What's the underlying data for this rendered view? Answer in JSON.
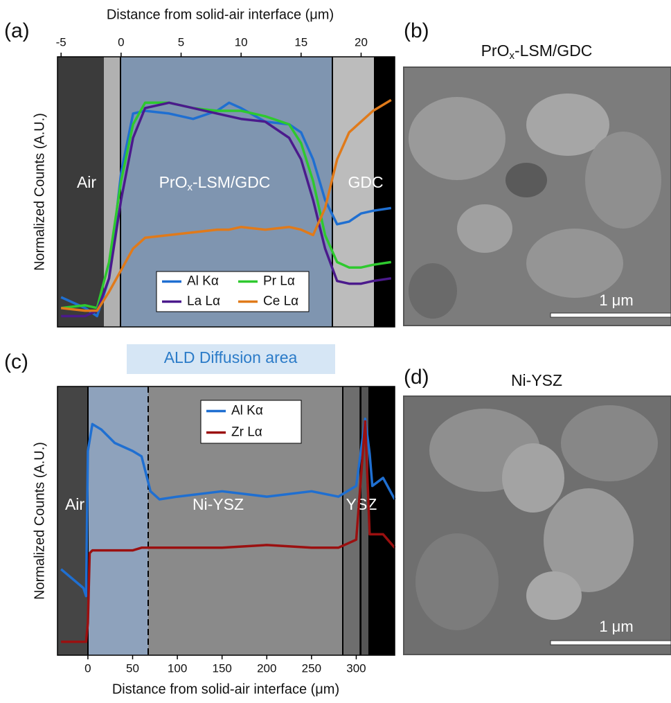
{
  "panel_labels": [
    "(a)",
    "(b)",
    "(c)",
    "(d)"
  ],
  "chart_data": [
    {
      "type": "line",
      "xlabel": "Distance from solid-air interface (μm)",
      "ylabel": "Normalized Counts (A.U.)",
      "xaxis": "top",
      "xlim": [
        -5.3,
        22.8
      ],
      "xticks": [
        -5,
        0,
        5,
        10,
        15,
        20
      ],
      "ylim": [
        0,
        1
      ],
      "regions": [
        "Air",
        {
          "text": "PrO",
          "sub": "x",
          "rest": "-LSM/GDC"
        },
        "GDC"
      ],
      "x": [
        -5,
        -3,
        -2,
        -1,
        0,
        1,
        2,
        4,
        6,
        8,
        9,
        10,
        12,
        14,
        15,
        16,
        17,
        18,
        19,
        20,
        21,
        22.5
      ],
      "series": [
        {
          "name": "Al Kα",
          "color": "#1f6fd1",
          "values": [
            0.11,
            0.07,
            0.04,
            0.18,
            0.57,
            0.79,
            0.8,
            0.79,
            0.77,
            0.8,
            0.83,
            0.81,
            0.76,
            0.75,
            0.72,
            0.62,
            0.47,
            0.38,
            0.39,
            0.42,
            0.43,
            0.44
          ]
        },
        {
          "name": "Pr Lα",
          "color": "#2ec92e",
          "values": [
            0.07,
            0.08,
            0.07,
            0.24,
            0.54,
            0.75,
            0.83,
            0.83,
            0.81,
            0.8,
            0.8,
            0.8,
            0.78,
            0.75,
            0.68,
            0.54,
            0.34,
            0.24,
            0.22,
            0.22,
            0.23,
            0.24
          ]
        },
        {
          "name": "La Lα",
          "color": "#4b1a8c",
          "values": [
            0.04,
            0.04,
            0.06,
            0.18,
            0.47,
            0.7,
            0.81,
            0.83,
            0.81,
            0.79,
            0.78,
            0.77,
            0.76,
            0.7,
            0.62,
            0.47,
            0.29,
            0.17,
            0.16,
            0.16,
            0.17,
            0.18
          ]
        },
        {
          "name": "Ce Lα",
          "color": "#e07a1a",
          "values": [
            0.07,
            0.06,
            0.06,
            0.13,
            0.21,
            0.29,
            0.33,
            0.34,
            0.35,
            0.36,
            0.36,
            0.37,
            0.36,
            0.37,
            0.36,
            0.34,
            0.44,
            0.62,
            0.72,
            0.76,
            0.8,
            0.84
          ]
        }
      ]
    },
    {
      "type": "line",
      "xlabel": "Distance from solid-air interface (μm)",
      "ylabel": "Normalized Counts (A.U.)",
      "xaxis": "bottom",
      "xlim": [
        -34,
        343
      ],
      "xticks": [
        0,
        50,
        100,
        150,
        200,
        250,
        300
      ],
      "ylim": [
        0,
        1
      ],
      "regions": [
        "Air",
        "Ni-YSZ",
        "YSZ"
      ],
      "annotation": "ALD Diffusion area",
      "x": [
        -30,
        -5,
        -2,
        0,
        2,
        5,
        10,
        15,
        30,
        50,
        60,
        70,
        80,
        100,
        150,
        200,
        250,
        280,
        300,
        310,
        315,
        318,
        330,
        343
      ],
      "series": [
        {
          "name": "Al Kα",
          "color": "#1f6fd1",
          "values": [
            0.32,
            0.25,
            0.22,
            0.76,
            0.8,
            0.86,
            0.85,
            0.84,
            0.79,
            0.76,
            0.74,
            0.61,
            0.58,
            0.59,
            0.61,
            0.59,
            0.61,
            0.59,
            0.63,
            0.88,
            0.75,
            0.63,
            0.66,
            0.58
          ]
        },
        {
          "name": "Zr Lα",
          "color": "#9b1010",
          "values": [
            0.05,
            0.05,
            0.05,
            0.12,
            0.38,
            0.39,
            0.39,
            0.39,
            0.39,
            0.39,
            0.4,
            0.4,
            0.4,
            0.4,
            0.4,
            0.41,
            0.4,
            0.4,
            0.43,
            0.87,
            0.45,
            0.45,
            0.45,
            0.4
          ]
        }
      ]
    }
  ],
  "images": [
    {
      "title": {
        "text": "PrO",
        "sub": "x",
        "rest": "-LSM/GDC"
      },
      "scale_bar": "1 μm"
    },
    {
      "title": "Ni-YSZ",
      "scale_bar": "1 μm"
    }
  ]
}
